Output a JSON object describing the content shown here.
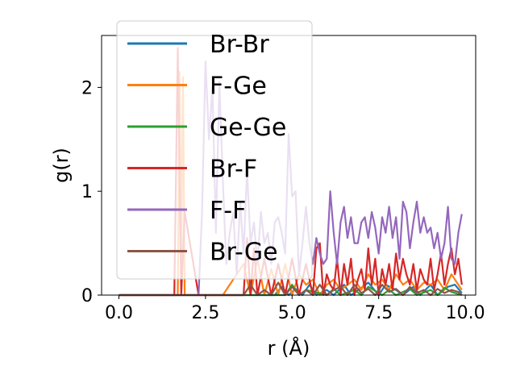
{
  "chart_data": {
    "type": "line",
    "xlabel": "r (Å)",
    "ylabel": "g(r)",
    "xlim": [
      -0.5,
      10.3
    ],
    "ylim": [
      0,
      2.5
    ],
    "xticks": [
      0.0,
      2.5,
      5.0,
      7.5,
      10.0
    ],
    "xtick_labels": [
      "0.0",
      "2.5",
      "5.0",
      "7.5",
      "10.0"
    ],
    "yticks": [
      0,
      1,
      2
    ],
    "ytick_labels": [
      "0",
      "1",
      "2"
    ],
    "grid": false,
    "legend_position": "upper-left",
    "series": [
      {
        "name": "Br-Br",
        "color": "#1f77b4",
        "x": [
          0.0,
          4.5,
          4.7,
          4.9,
          5.1,
          5.3,
          5.5,
          5.7,
          6.0,
          6.2,
          6.5,
          6.7,
          7.0,
          7.2,
          7.5,
          7.7,
          8.0,
          8.2,
          8.5,
          8.7,
          9.0,
          9.2,
          9.5,
          9.7,
          9.9
        ],
        "y": [
          0.0,
          0.0,
          0.08,
          0.0,
          0.06,
          0.0,
          0.1,
          0.0,
          0.05,
          0.0,
          0.1,
          0.0,
          0.07,
          0.12,
          0.0,
          0.1,
          0.05,
          0.0,
          0.08,
          0.0,
          0.1,
          0.0,
          0.08,
          0.1,
          0.02
        ]
      },
      {
        "name": "F-Ge",
        "color": "#ff7f0e",
        "x": [
          0.0,
          1.7,
          1.75,
          1.8,
          1.85,
          1.9,
          2.0,
          2.2,
          3.0,
          3.6,
          3.8,
          4.0,
          4.2,
          4.4,
          4.6,
          4.8,
          5.0,
          5.2,
          5.4,
          5.6,
          5.8,
          6.0,
          6.2,
          6.4,
          6.6,
          6.8,
          7.0,
          7.2,
          7.4,
          7.6,
          7.8,
          8.0,
          8.2,
          8.4,
          8.6,
          8.8,
          9.0,
          9.2,
          9.4,
          9.6,
          9.8,
          9.9
        ],
        "y": [
          0.0,
          0.0,
          2.15,
          0.3,
          2.1,
          0.0,
          0.0,
          0.0,
          0.0,
          0.3,
          0.0,
          0.35,
          0.0,
          0.25,
          0.0,
          0.3,
          0.0,
          0.2,
          0.1,
          0.15,
          0.0,
          0.1,
          0.15,
          0.05,
          0.1,
          0.15,
          0.05,
          0.2,
          0.1,
          0.15,
          0.05,
          0.2,
          0.1,
          0.15,
          0.05,
          0.12,
          0.1,
          0.15,
          0.05,
          0.2,
          0.1,
          0.05
        ]
      },
      {
        "name": "Ge-Ge",
        "color": "#2ca02c",
        "x": [
          0.0,
          4.8,
          5.0,
          5.2,
          5.4,
          6.0,
          6.2,
          6.4,
          6.8,
          7.0,
          7.2,
          7.6,
          7.8,
          8.0,
          8.4,
          8.6,
          9.0,
          9.2,
          9.4,
          9.6,
          9.9
        ],
        "y": [
          0.0,
          0.0,
          0.1,
          0.0,
          0.05,
          0.0,
          0.06,
          0.0,
          0.05,
          0.0,
          0.08,
          0.0,
          0.05,
          0.0,
          0.06,
          0.0,
          0.05,
          0.0,
          0.07,
          0.03,
          0.0
        ]
      },
      {
        "name": "Br-F",
        "color": "#d62728",
        "x": [
          0.0,
          1.6,
          1.7,
          1.8,
          1.9,
          2.3,
          3.6,
          3.7,
          3.8,
          3.9,
          4.0,
          4.2,
          4.4,
          4.6,
          4.8,
          5.0,
          5.2,
          5.4,
          5.6,
          5.7,
          5.8,
          5.9,
          6.0,
          6.1,
          6.2,
          6.3,
          6.4,
          6.5,
          6.6,
          6.7,
          6.8,
          6.9,
          7.0,
          7.1,
          7.2,
          7.3,
          7.4,
          7.5,
          7.6,
          7.7,
          7.8,
          7.9,
          8.0,
          8.1,
          8.2,
          8.3,
          8.4,
          8.5,
          8.6,
          8.7,
          8.8,
          8.9,
          9.0,
          9.1,
          9.2,
          9.3,
          9.4,
          9.5,
          9.6,
          9.7,
          9.8,
          9.9
        ],
        "y": [
          0.0,
          0.0,
          2.38,
          0.0,
          0.8,
          0.0,
          0.0,
          0.55,
          0.0,
          0.45,
          0.0,
          0.35,
          0.0,
          0.3,
          0.0,
          0.35,
          0.0,
          0.3,
          0.0,
          0.45,
          0.5,
          0.0,
          0.2,
          0.1,
          0.05,
          0.35,
          0.0,
          0.3,
          0.1,
          0.35,
          0.0,
          0.15,
          0.25,
          0.05,
          0.45,
          0.1,
          0.35,
          0.0,
          0.25,
          0.1,
          0.3,
          0.05,
          0.4,
          0.15,
          0.35,
          0.2,
          0.1,
          0.3,
          0.05,
          0.25,
          0.15,
          0.1,
          0.35,
          0.05,
          0.2,
          0.4,
          0.1,
          0.3,
          0.45,
          0.2,
          0.35,
          0.1
        ]
      },
      {
        "name": "F-F",
        "color": "#9467bd",
        "x": [
          0.0,
          2.3,
          2.4,
          2.5,
          2.6,
          2.7,
          2.8,
          2.9,
          3.0,
          3.1,
          3.2,
          3.3,
          3.4,
          3.5,
          3.6,
          3.7,
          3.8,
          3.9,
          4.0,
          4.1,
          4.2,
          4.3,
          4.4,
          4.5,
          4.6,
          4.7,
          4.8,
          4.9,
          5.0,
          5.1,
          5.2,
          5.3,
          5.4,
          5.5,
          5.6,
          5.7,
          5.8,
          5.9,
          6.0,
          6.1,
          6.2,
          6.3,
          6.4,
          6.5,
          6.6,
          6.7,
          6.8,
          6.9,
          7.0,
          7.1,
          7.2,
          7.3,
          7.4,
          7.5,
          7.6,
          7.7,
          7.8,
          7.9,
          8.0,
          8.1,
          8.2,
          8.3,
          8.4,
          8.5,
          8.6,
          8.7,
          8.8,
          8.9,
          9.0,
          9.1,
          9.2,
          9.3,
          9.4,
          9.5,
          9.6,
          9.7,
          9.8,
          9.9
        ],
        "y": [
          0.0,
          0.0,
          0.8,
          2.25,
          1.5,
          2.0,
          0.6,
          2.05,
          1.1,
          0.3,
          0.6,
          0.8,
          0.2,
          0.9,
          0.4,
          1.2,
          0.5,
          0.7,
          0.3,
          0.8,
          0.5,
          0.6,
          0.3,
          0.7,
          0.75,
          0.6,
          0.4,
          1.55,
          0.95,
          1.0,
          0.2,
          0.5,
          0.85,
          0.5,
          0.3,
          0.55,
          0.4,
          0.3,
          0.35,
          1.0,
          0.6,
          0.3,
          0.7,
          0.85,
          0.55,
          0.75,
          0.5,
          0.5,
          0.7,
          0.75,
          0.55,
          0.8,
          0.65,
          0.4,
          0.75,
          0.6,
          0.85,
          0.55,
          0.75,
          0.35,
          0.9,
          0.8,
          0.45,
          0.7,
          0.9,
          0.6,
          0.75,
          0.6,
          0.65,
          0.45,
          0.6,
          0.35,
          0.5,
          0.85,
          0.35,
          0.3,
          0.6,
          0.78
        ]
      },
      {
        "name": "Br-Ge",
        "color": "#8c564b",
        "x": [
          0.0,
          3.6,
          3.8,
          4.0,
          4.2,
          4.4,
          4.6,
          4.8,
          5.0,
          5.2,
          5.4,
          5.6,
          5.8,
          6.0,
          6.2,
          6.4,
          6.6,
          6.8,
          7.0,
          7.2,
          7.4,
          7.6,
          7.8,
          8.0,
          8.2,
          8.4,
          8.6,
          8.8,
          9.0,
          9.2,
          9.4,
          9.6,
          9.8,
          9.9
        ],
        "y": [
          0.0,
          0.0,
          0.1,
          0.0,
          0.05,
          0.0,
          0.12,
          0.0,
          0.08,
          0.0,
          0.05,
          0.0,
          0.1,
          0.0,
          0.05,
          0.08,
          0.0,
          0.1,
          0.02,
          0.06,
          0.0,
          0.1,
          0.03,
          0.06,
          0.0,
          0.08,
          0.02,
          0.05,
          0.0,
          0.06,
          0.02,
          0.05,
          0.03,
          0.0
        ]
      }
    ]
  }
}
